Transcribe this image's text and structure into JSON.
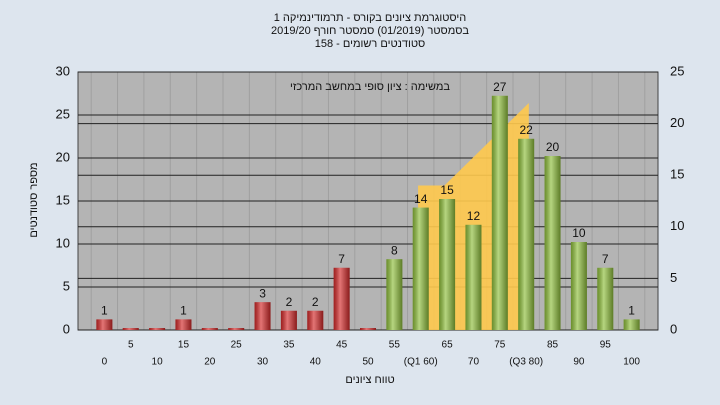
{
  "chart_data": {
    "type": "bar",
    "title": "היסטוגרמת ציונים בקורס - תרמודינמיקה 1",
    "subtitle": "בסמסטר  (01/2019)  סמסטר חורף 2019/20",
    "subtitle2": "סטודנטים רשומים - 158",
    "annotation": "במשימה : ציון סופי במחשב המרכזי",
    "y_label": "מספר סטודנטים",
    "x_label": "טווח ציונים",
    "categories": [
      "0",
      "5",
      "10",
      "15",
      "20",
      "25",
      "30",
      "35",
      "40",
      "45",
      "50",
      "55",
      "(Q1 60)",
      "65",
      "70",
      "75",
      "(Q3 80)",
      "85",
      "90",
      "95",
      "100"
    ],
    "values": [
      1,
      0,
      0,
      1,
      0,
      0,
      3,
      2,
      2,
      7,
      0,
      8,
      14,
      15,
      12,
      27,
      22,
      20,
      10,
      7,
      1
    ],
    "colors": [
      "#d42a2a",
      "#d42a2a",
      "#d42a2a",
      "#d42a2a",
      "#d42a2a",
      "#d42a2a",
      "#d42a2a",
      "#d42a2a",
      "#d42a2a",
      "#d42a2a",
      "#d42a2a",
      "#8fbf3c",
      "#8fbf3c",
      "#8fbf3c",
      "#8fbf3c",
      "#8fbf3c",
      "#8fbf3c",
      "#8fbf3c",
      "#8fbf3c",
      "#8fbf3c",
      "#8fbf3c"
    ],
    "area": {
      "axis": "y2",
      "color": "#ffc94d",
      "x": [
        59.5,
        64.5,
        69.5,
        74.5,
        80.5
      ],
      "values": [
        14,
        14,
        16.5,
        19,
        22
      ]
    },
    "ylim": [
      0,
      30
    ],
    "yticks": [
      0,
      5,
      10,
      15,
      20,
      25,
      30
    ],
    "y2lim": [
      0,
      25
    ],
    "y2ticks": [
      0,
      5,
      10,
      15,
      20,
      25
    ],
    "xlim": [
      -5,
      105
    ],
    "grid": true
  }
}
